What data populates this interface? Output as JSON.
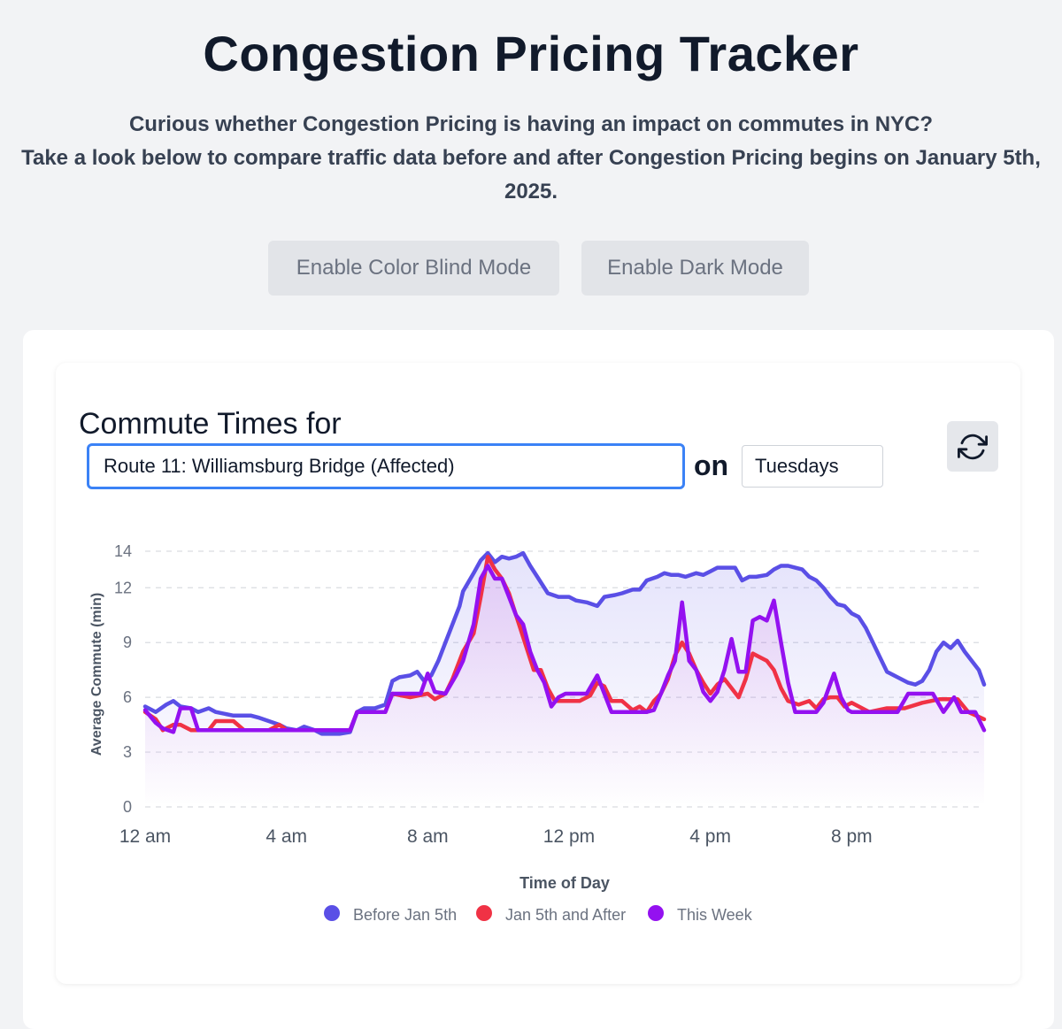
{
  "header": {
    "title": "Congestion Pricing Tracker",
    "intro_line1": "Curious whether Congestion Pricing is having an impact on commutes in NYC?",
    "intro_line2": "Take a look below to compare traffic data before and after Congestion Pricing begins on January 5th, 2025."
  },
  "controls": {
    "color_blind_label": "Enable Color Blind Mode",
    "dark_mode_label": "Enable Dark Mode"
  },
  "panel": {
    "heading": "Commute Times for",
    "route_value": "Route 11: Williamsburg Bridge (Affected)",
    "on_word": "on",
    "day_value": "Tuesdays",
    "refresh_icon": "refresh-icon"
  },
  "colors": {
    "before": "#5a4fe6",
    "after": "#f03245",
    "this_week": "#9411f0"
  },
  "chart_data": {
    "type": "line",
    "title": "",
    "xlabel": "Time of Day",
    "ylabel": "Average Commute (min)",
    "ylim": [
      0,
      14
    ],
    "yticks": [
      0,
      3,
      6,
      9,
      12,
      14
    ],
    "xlim": [
      0,
      23.75
    ],
    "xticks": [
      {
        "value": 0,
        "label": "12 am"
      },
      {
        "value": 4,
        "label": "4 am"
      },
      {
        "value": 8,
        "label": "8 am"
      },
      {
        "value": 12,
        "label": "12 pm"
      },
      {
        "value": 16,
        "label": "4 pm"
      },
      {
        "value": 20,
        "label": "8 pm"
      }
    ],
    "grid": true,
    "legend": "bottom",
    "series": [
      {
        "name": "Before Jan 5th",
        "color": "#5a4fe6",
        "points": [
          [
            0,
            5.5
          ],
          [
            0.3,
            5.2
          ],
          [
            0.6,
            5.6
          ],
          [
            0.8,
            5.8
          ],
          [
            1.0,
            5.5
          ],
          [
            1.3,
            5.4
          ],
          [
            1.5,
            5.2
          ],
          [
            1.8,
            5.4
          ],
          [
            2,
            5.2
          ],
          [
            2.5,
            5.0
          ],
          [
            3,
            5.0
          ],
          [
            3.2,
            4.9
          ],
          [
            3.5,
            4.7
          ],
          [
            3.8,
            4.5
          ],
          [
            4.0,
            4.3
          ],
          [
            4.3,
            4.2
          ],
          [
            4.5,
            4.4
          ],
          [
            4.8,
            4.2
          ],
          [
            5,
            4.0
          ],
          [
            5.5,
            4.0
          ],
          [
            5.8,
            4.1
          ],
          [
            6,
            5.2
          ],
          [
            6.2,
            5.4
          ],
          [
            6.5,
            5.4
          ],
          [
            6.8,
            5.6
          ],
          [
            7.0,
            6.9
          ],
          [
            7.2,
            7.1
          ],
          [
            7.5,
            7.2
          ],
          [
            7.7,
            7.4
          ],
          [
            7.9,
            6.9
          ],
          [
            8.1,
            7.2
          ],
          [
            8.3,
            8.0
          ],
          [
            8.5,
            9.0
          ],
          [
            8.7,
            10.0
          ],
          [
            8.9,
            11.0
          ],
          [
            9.0,
            11.8
          ],
          [
            9.3,
            12.8
          ],
          [
            9.5,
            13.5
          ],
          [
            9.7,
            13.9
          ],
          [
            9.9,
            13.4
          ],
          [
            10.1,
            13.7
          ],
          [
            10.3,
            13.6
          ],
          [
            10.5,
            13.7
          ],
          [
            10.7,
            13.9
          ],
          [
            10.9,
            13.2
          ],
          [
            11.1,
            12.6
          ],
          [
            11.4,
            11.7
          ],
          [
            11.7,
            11.5
          ],
          [
            12,
            11.5
          ],
          [
            12.2,
            11.3
          ],
          [
            12.5,
            11.2
          ],
          [
            12.8,
            11.0
          ],
          [
            13,
            11.5
          ],
          [
            13.3,
            11.6
          ],
          [
            13.5,
            11.7
          ],
          [
            13.8,
            11.9
          ],
          [
            14,
            11.9
          ],
          [
            14.2,
            12.4
          ],
          [
            14.5,
            12.6
          ],
          [
            14.7,
            12.8
          ],
          [
            14.9,
            12.7
          ],
          [
            15.1,
            12.7
          ],
          [
            15.3,
            12.6
          ],
          [
            15.6,
            12.8
          ],
          [
            15.8,
            12.7
          ],
          [
            16,
            12.9
          ],
          [
            16.2,
            13.1
          ],
          [
            16.5,
            13.1
          ],
          [
            16.7,
            13.1
          ],
          [
            16.9,
            12.4
          ],
          [
            17.1,
            12.6
          ],
          [
            17.3,
            12.6
          ],
          [
            17.6,
            12.7
          ],
          [
            17.8,
            13.0
          ],
          [
            18,
            13.2
          ],
          [
            18.2,
            13.2
          ],
          [
            18.4,
            13.1
          ],
          [
            18.6,
            13.0
          ],
          [
            18.8,
            12.6
          ],
          [
            19,
            12.4
          ],
          [
            19.2,
            12.0
          ],
          [
            19.4,
            11.5
          ],
          [
            19.6,
            11.1
          ],
          [
            19.8,
            11.0
          ],
          [
            20,
            10.6
          ],
          [
            20.2,
            10.4
          ],
          [
            20.4,
            9.8
          ],
          [
            20.6,
            9.0
          ],
          [
            20.8,
            8.2
          ],
          [
            21,
            7.4
          ],
          [
            21.2,
            7.2
          ],
          [
            21.4,
            7.0
          ],
          [
            21.6,
            6.8
          ],
          [
            21.8,
            6.7
          ],
          [
            22,
            6.9
          ],
          [
            22.2,
            7.5
          ],
          [
            22.4,
            8.5
          ],
          [
            22.6,
            9.0
          ],
          [
            22.8,
            8.7
          ],
          [
            23,
            9.1
          ],
          [
            23.2,
            8.5
          ],
          [
            23.4,
            8.0
          ],
          [
            23.6,
            7.5
          ],
          [
            23.75,
            6.7
          ]
        ]
      },
      {
        "name": "Jan 5th and After",
        "color": "#f03245",
        "points": [
          [
            0,
            5.2
          ],
          [
            0.3,
            4.8
          ],
          [
            0.5,
            4.2
          ],
          [
            0.8,
            4.5
          ],
          [
            1.0,
            4.5
          ],
          [
            1.3,
            4.2
          ],
          [
            1.5,
            4.2
          ],
          [
            1.8,
            4.2
          ],
          [
            2,
            4.7
          ],
          [
            2.5,
            4.7
          ],
          [
            2.8,
            4.2
          ],
          [
            3,
            4.2
          ],
          [
            3.5,
            4.2
          ],
          [
            3.8,
            4.5
          ],
          [
            4.0,
            4.2
          ],
          [
            4.5,
            4.2
          ],
          [
            5,
            4.2
          ],
          [
            5.5,
            4.2
          ],
          [
            5.8,
            4.2
          ],
          [
            6,
            5.2
          ],
          [
            6.5,
            5.2
          ],
          [
            6.8,
            5.2
          ],
          [
            7,
            6.2
          ],
          [
            7.5,
            6.0
          ],
          [
            8,
            6.2
          ],
          [
            8.2,
            5.9
          ],
          [
            8.5,
            6.2
          ],
          [
            8.7,
            7.0
          ],
          [
            9.0,
            8.5
          ],
          [
            9.3,
            9.5
          ],
          [
            9.5,
            11.5
          ],
          [
            9.7,
            13.7
          ],
          [
            9.9,
            13.0
          ],
          [
            10.1,
            12.5
          ],
          [
            10.3,
            11.7
          ],
          [
            10.5,
            10.5
          ],
          [
            10.7,
            9.3
          ],
          [
            11,
            7.5
          ],
          [
            11.2,
            7.5
          ],
          [
            11.4,
            6.5
          ],
          [
            11.6,
            5.8
          ],
          [
            11.8,
            5.8
          ],
          [
            12,
            5.8
          ],
          [
            12.3,
            5.8
          ],
          [
            12.6,
            6.1
          ],
          [
            12.8,
            6.8
          ],
          [
            13,
            6.6
          ],
          [
            13.2,
            5.8
          ],
          [
            13.5,
            5.8
          ],
          [
            13.8,
            5.3
          ],
          [
            14,
            5.5
          ],
          [
            14.2,
            5.2
          ],
          [
            14.4,
            5.8
          ],
          [
            14.6,
            6.2
          ],
          [
            14.8,
            7.0
          ],
          [
            15,
            8.3
          ],
          [
            15.2,
            9.0
          ],
          [
            15.4,
            8.4
          ],
          [
            15.6,
            7.5
          ],
          [
            15.8,
            6.8
          ],
          [
            16,
            6.2
          ],
          [
            16.2,
            6.7
          ],
          [
            16.4,
            7.0
          ],
          [
            16.6,
            6.5
          ],
          [
            16.8,
            6.0
          ],
          [
            17,
            7.0
          ],
          [
            17.2,
            8.4
          ],
          [
            17.4,
            8.2
          ],
          [
            17.6,
            8.0
          ],
          [
            17.8,
            7.5
          ],
          [
            18,
            6.5
          ],
          [
            18.2,
            5.8
          ],
          [
            18.5,
            5.6
          ],
          [
            18.8,
            5.8
          ],
          [
            19,
            5.4
          ],
          [
            19.2,
            5.9
          ],
          [
            19.4,
            6.0
          ],
          [
            19.6,
            6.0
          ],
          [
            19.8,
            5.5
          ],
          [
            20,
            5.7
          ],
          [
            20.5,
            5.2
          ],
          [
            21,
            5.4
          ],
          [
            21.5,
            5.4
          ],
          [
            22,
            5.7
          ],
          [
            22.5,
            5.9
          ],
          [
            23,
            5.9
          ],
          [
            23.3,
            5.2
          ],
          [
            23.75,
            4.8
          ]
        ]
      },
      {
        "name": "This Week",
        "color": "#9411f0",
        "points": [
          [
            0,
            5.3
          ],
          [
            0.3,
            4.6
          ],
          [
            0.5,
            4.3
          ],
          [
            0.8,
            4.1
          ],
          [
            1.0,
            5.4
          ],
          [
            1.3,
            5.4
          ],
          [
            1.5,
            4.2
          ],
          [
            2,
            4.2
          ],
          [
            2.5,
            4.2
          ],
          [
            3,
            4.2
          ],
          [
            3.5,
            4.2
          ],
          [
            4,
            4.2
          ],
          [
            4.5,
            4.2
          ],
          [
            5,
            4.2
          ],
          [
            5.5,
            4.2
          ],
          [
            5.8,
            4.2
          ],
          [
            6,
            5.2
          ],
          [
            6.5,
            5.2
          ],
          [
            6.8,
            5.2
          ],
          [
            7,
            6.2
          ],
          [
            7.5,
            6.2
          ],
          [
            7.8,
            6.2
          ],
          [
            8,
            7.3
          ],
          [
            8.2,
            6.3
          ],
          [
            8.5,
            6.2
          ],
          [
            8.8,
            7.2
          ],
          [
            9.0,
            8.0
          ],
          [
            9.3,
            10.0
          ],
          [
            9.5,
            12.5
          ],
          [
            9.7,
            13.2
          ],
          [
            9.9,
            12.5
          ],
          [
            10.1,
            12.5
          ],
          [
            10.3,
            11.5
          ],
          [
            10.5,
            10.5
          ],
          [
            10.7,
            10.0
          ],
          [
            10.9,
            8.5
          ],
          [
            11.1,
            7.5
          ],
          [
            11.3,
            6.8
          ],
          [
            11.5,
            5.5
          ],
          [
            11.7,
            6.0
          ],
          [
            11.9,
            6.2
          ],
          [
            12,
            6.2
          ],
          [
            12.5,
            6.2
          ],
          [
            12.8,
            7.2
          ],
          [
            13,
            6.2
          ],
          [
            13.2,
            5.2
          ],
          [
            13.5,
            5.2
          ],
          [
            14,
            5.2
          ],
          [
            14.2,
            5.2
          ],
          [
            14.4,
            5.3
          ],
          [
            14.6,
            6.2
          ],
          [
            14.8,
            7.2
          ],
          [
            15,
            8.0
          ],
          [
            15.2,
            11.2
          ],
          [
            15.4,
            8.0
          ],
          [
            15.6,
            7.5
          ],
          [
            15.8,
            6.3
          ],
          [
            16,
            5.8
          ],
          [
            16.2,
            6.3
          ],
          [
            16.4,
            7.5
          ],
          [
            16.6,
            9.2
          ],
          [
            16.8,
            7.4
          ],
          [
            17,
            7.4
          ],
          [
            17.2,
            10.2
          ],
          [
            17.4,
            10.4
          ],
          [
            17.6,
            10.2
          ],
          [
            17.8,
            11.3
          ],
          [
            18,
            9.0
          ],
          [
            18.2,
            6.8
          ],
          [
            18.4,
            5.2
          ],
          [
            18.8,
            5.2
          ],
          [
            19,
            5.2
          ],
          [
            19.2,
            5.7
          ],
          [
            19.5,
            7.3
          ],
          [
            19.7,
            6.0
          ],
          [
            19.9,
            5.3
          ],
          [
            20,
            5.2
          ],
          [
            20.5,
            5.2
          ],
          [
            21,
            5.2
          ],
          [
            21.3,
            5.2
          ],
          [
            21.6,
            6.2
          ],
          [
            22,
            6.2
          ],
          [
            22.3,
            6.2
          ],
          [
            22.6,
            5.2
          ],
          [
            22.9,
            6.0
          ],
          [
            23.1,
            5.2
          ],
          [
            23.5,
            5.2
          ],
          [
            23.75,
            4.2
          ]
        ]
      }
    ]
  }
}
